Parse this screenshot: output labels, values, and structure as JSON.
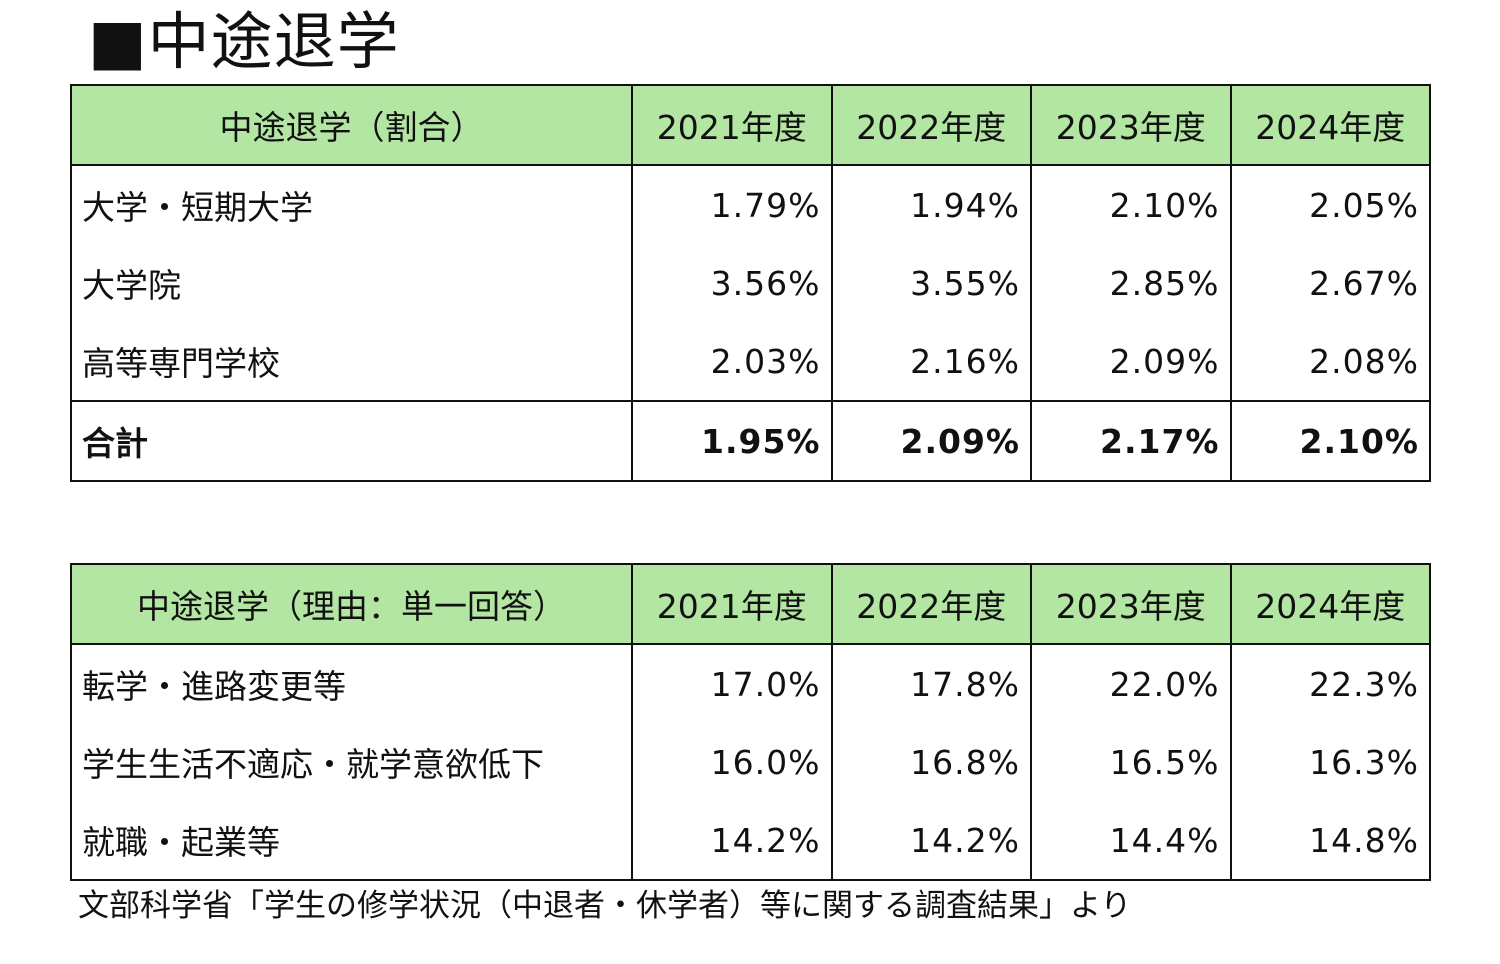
{
  "title": "■中途退学",
  "table1": {
    "header": [
      "中途退学（割合）",
      "2021年度",
      "2022年度",
      "2023年度",
      "2024年度"
    ],
    "rows": [
      {
        "label": "大学・短期大学",
        "values": [
          "1.79%",
          "1.94%",
          "2.10%",
          "2.05%"
        ]
      },
      {
        "label": "大学院",
        "values": [
          "3.56%",
          "3.55%",
          "2.85%",
          "2.67%"
        ]
      },
      {
        "label": "高等専門学校",
        "values": [
          "2.03%",
          "2.16%",
          "2.09%",
          "2.08%"
        ]
      }
    ],
    "total": {
      "label": "合計",
      "values": [
        "1.95%",
        "2.09%",
        "2.17%",
        "2.10%"
      ]
    }
  },
  "table2": {
    "header": [
      "中途退学（理由：単一回答）",
      "2021年度",
      "2022年度",
      "2023年度",
      "2024年度"
    ],
    "rows": [
      {
        "label": "転学・進路変更等",
        "values": [
          "17.0%",
          "17.8%",
          "22.0%",
          "22.3%"
        ]
      },
      {
        "label": "学生生活不適応・就学意欲低下",
        "values": [
          "16.0%",
          "16.8%",
          "16.5%",
          "16.3%"
        ]
      },
      {
        "label": "就職・起業等",
        "values": [
          "14.2%",
          "14.2%",
          "14.4%",
          "14.8%"
        ]
      }
    ]
  },
  "source": "文部科学省「学生の修学状況（中退者・休学者）等に関する調査結果」より",
  "colors": {
    "header_bg": "#b3e6a2",
    "border": "#111111"
  }
}
